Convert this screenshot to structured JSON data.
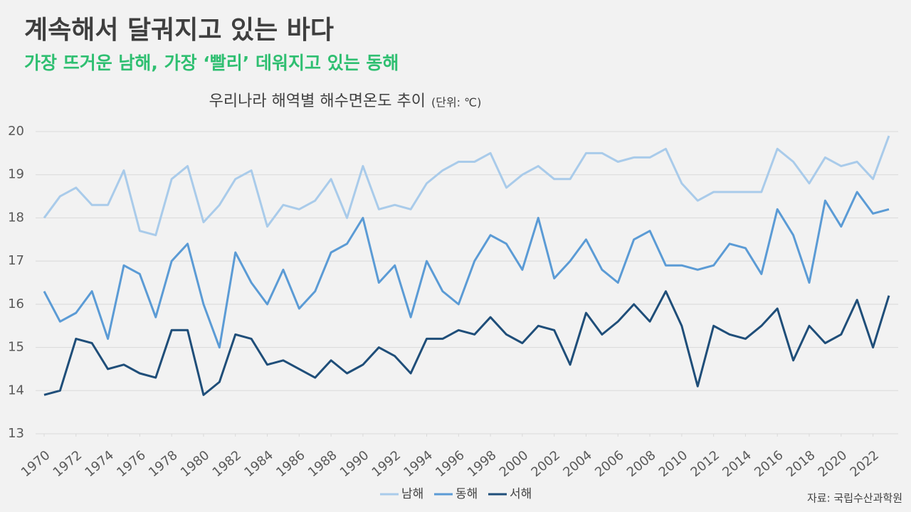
{
  "title": "계속해서 달궈지고 있는 바다",
  "subtitle": "가장 뜨거운 남해, 가장 ‘빨리’ 데워지고 있는 동해",
  "source": "자료: 국립수산과학원",
  "chart_data": {
    "type": "line",
    "title": "우리나라 해역별 해수면온도 추이",
    "unit": "(단위: ℃)",
    "x": [
      1970,
      1971,
      1972,
      1973,
      1974,
      1975,
      1976,
      1977,
      1978,
      1979,
      1980,
      1981,
      1982,
      1983,
      1984,
      1985,
      1986,
      1987,
      1988,
      1989,
      1990,
      1991,
      1992,
      1993,
      1994,
      1995,
      1996,
      1997,
      1998,
      1999,
      2000,
      2001,
      2002,
      2003,
      2004,
      2005,
      2006,
      2007,
      2008,
      2009,
      2010,
      2011,
      2012,
      2013,
      2014,
      2015,
      2016,
      2017,
      2018,
      2019,
      2020,
      2021,
      2022,
      2023
    ],
    "xlim": [
      1970,
      2023
    ],
    "xticks": [
      1970,
      1972,
      1974,
      1976,
      1978,
      1980,
      1982,
      1984,
      1986,
      1988,
      1990,
      1992,
      1994,
      1996,
      1998,
      2000,
      2002,
      2004,
      2006,
      2008,
      2010,
      2012,
      2014,
      2016,
      2018,
      2020,
      2022
    ],
    "ylim": [
      13,
      20
    ],
    "yticks": [
      13,
      14,
      15,
      16,
      17,
      18,
      19,
      20
    ],
    "grid": true,
    "legend": "bottom",
    "series": [
      {
        "name": "남해",
        "color": "#a9cbea",
        "values": [
          18.0,
          18.5,
          18.7,
          18.3,
          18.3,
          19.1,
          17.7,
          17.6,
          18.9,
          19.2,
          17.9,
          18.3,
          18.9,
          19.1,
          17.8,
          18.3,
          18.2,
          18.4,
          18.9,
          18.0,
          19.2,
          18.2,
          18.3,
          18.2,
          18.8,
          19.1,
          19.3,
          19.3,
          19.5,
          18.7,
          19.0,
          19.2,
          18.9,
          18.9,
          19.5,
          19.5,
          19.3,
          19.4,
          19.4,
          19.6,
          18.8,
          18.4,
          18.6,
          18.6,
          18.6,
          18.6,
          19.6,
          19.3,
          18.8,
          19.4,
          19.2,
          19.3,
          18.9,
          19.9
        ]
      },
      {
        "name": "동해",
        "color": "#5b9bd5",
        "values": [
          16.3,
          15.6,
          15.8,
          16.3,
          15.2,
          16.9,
          16.7,
          15.7,
          17.0,
          17.4,
          16.0,
          15.0,
          17.2,
          16.5,
          16.0,
          16.8,
          15.9,
          16.3,
          17.2,
          17.4,
          18.0,
          16.5,
          16.9,
          15.7,
          17.0,
          16.3,
          16.0,
          17.0,
          17.6,
          17.4,
          16.8,
          18.0,
          16.6,
          17.0,
          17.5,
          16.8,
          16.5,
          17.5,
          17.7,
          16.9,
          16.9,
          16.8,
          16.9,
          17.4,
          17.3,
          16.7,
          18.2,
          17.6,
          16.5,
          18.4,
          17.8,
          18.6,
          18.1,
          18.2
        ]
      },
      {
        "name": "서해",
        "color": "#1f4e79",
        "values": [
          13.9,
          14.0,
          15.2,
          15.1,
          14.5,
          14.6,
          14.4,
          14.3,
          15.4,
          15.4,
          13.9,
          14.2,
          15.3,
          15.2,
          14.6,
          14.7,
          14.5,
          14.3,
          14.7,
          14.4,
          14.6,
          15.0,
          14.8,
          14.4,
          15.2,
          15.2,
          15.4,
          15.3,
          15.7,
          15.3,
          15.1,
          15.5,
          15.4,
          14.6,
          15.8,
          15.3,
          15.6,
          16.0,
          15.6,
          16.3,
          15.5,
          14.1,
          15.5,
          15.3,
          15.2,
          15.5,
          15.9,
          14.7,
          15.5,
          15.1,
          15.3,
          16.1,
          15.0,
          16.2
        ]
      }
    ]
  }
}
